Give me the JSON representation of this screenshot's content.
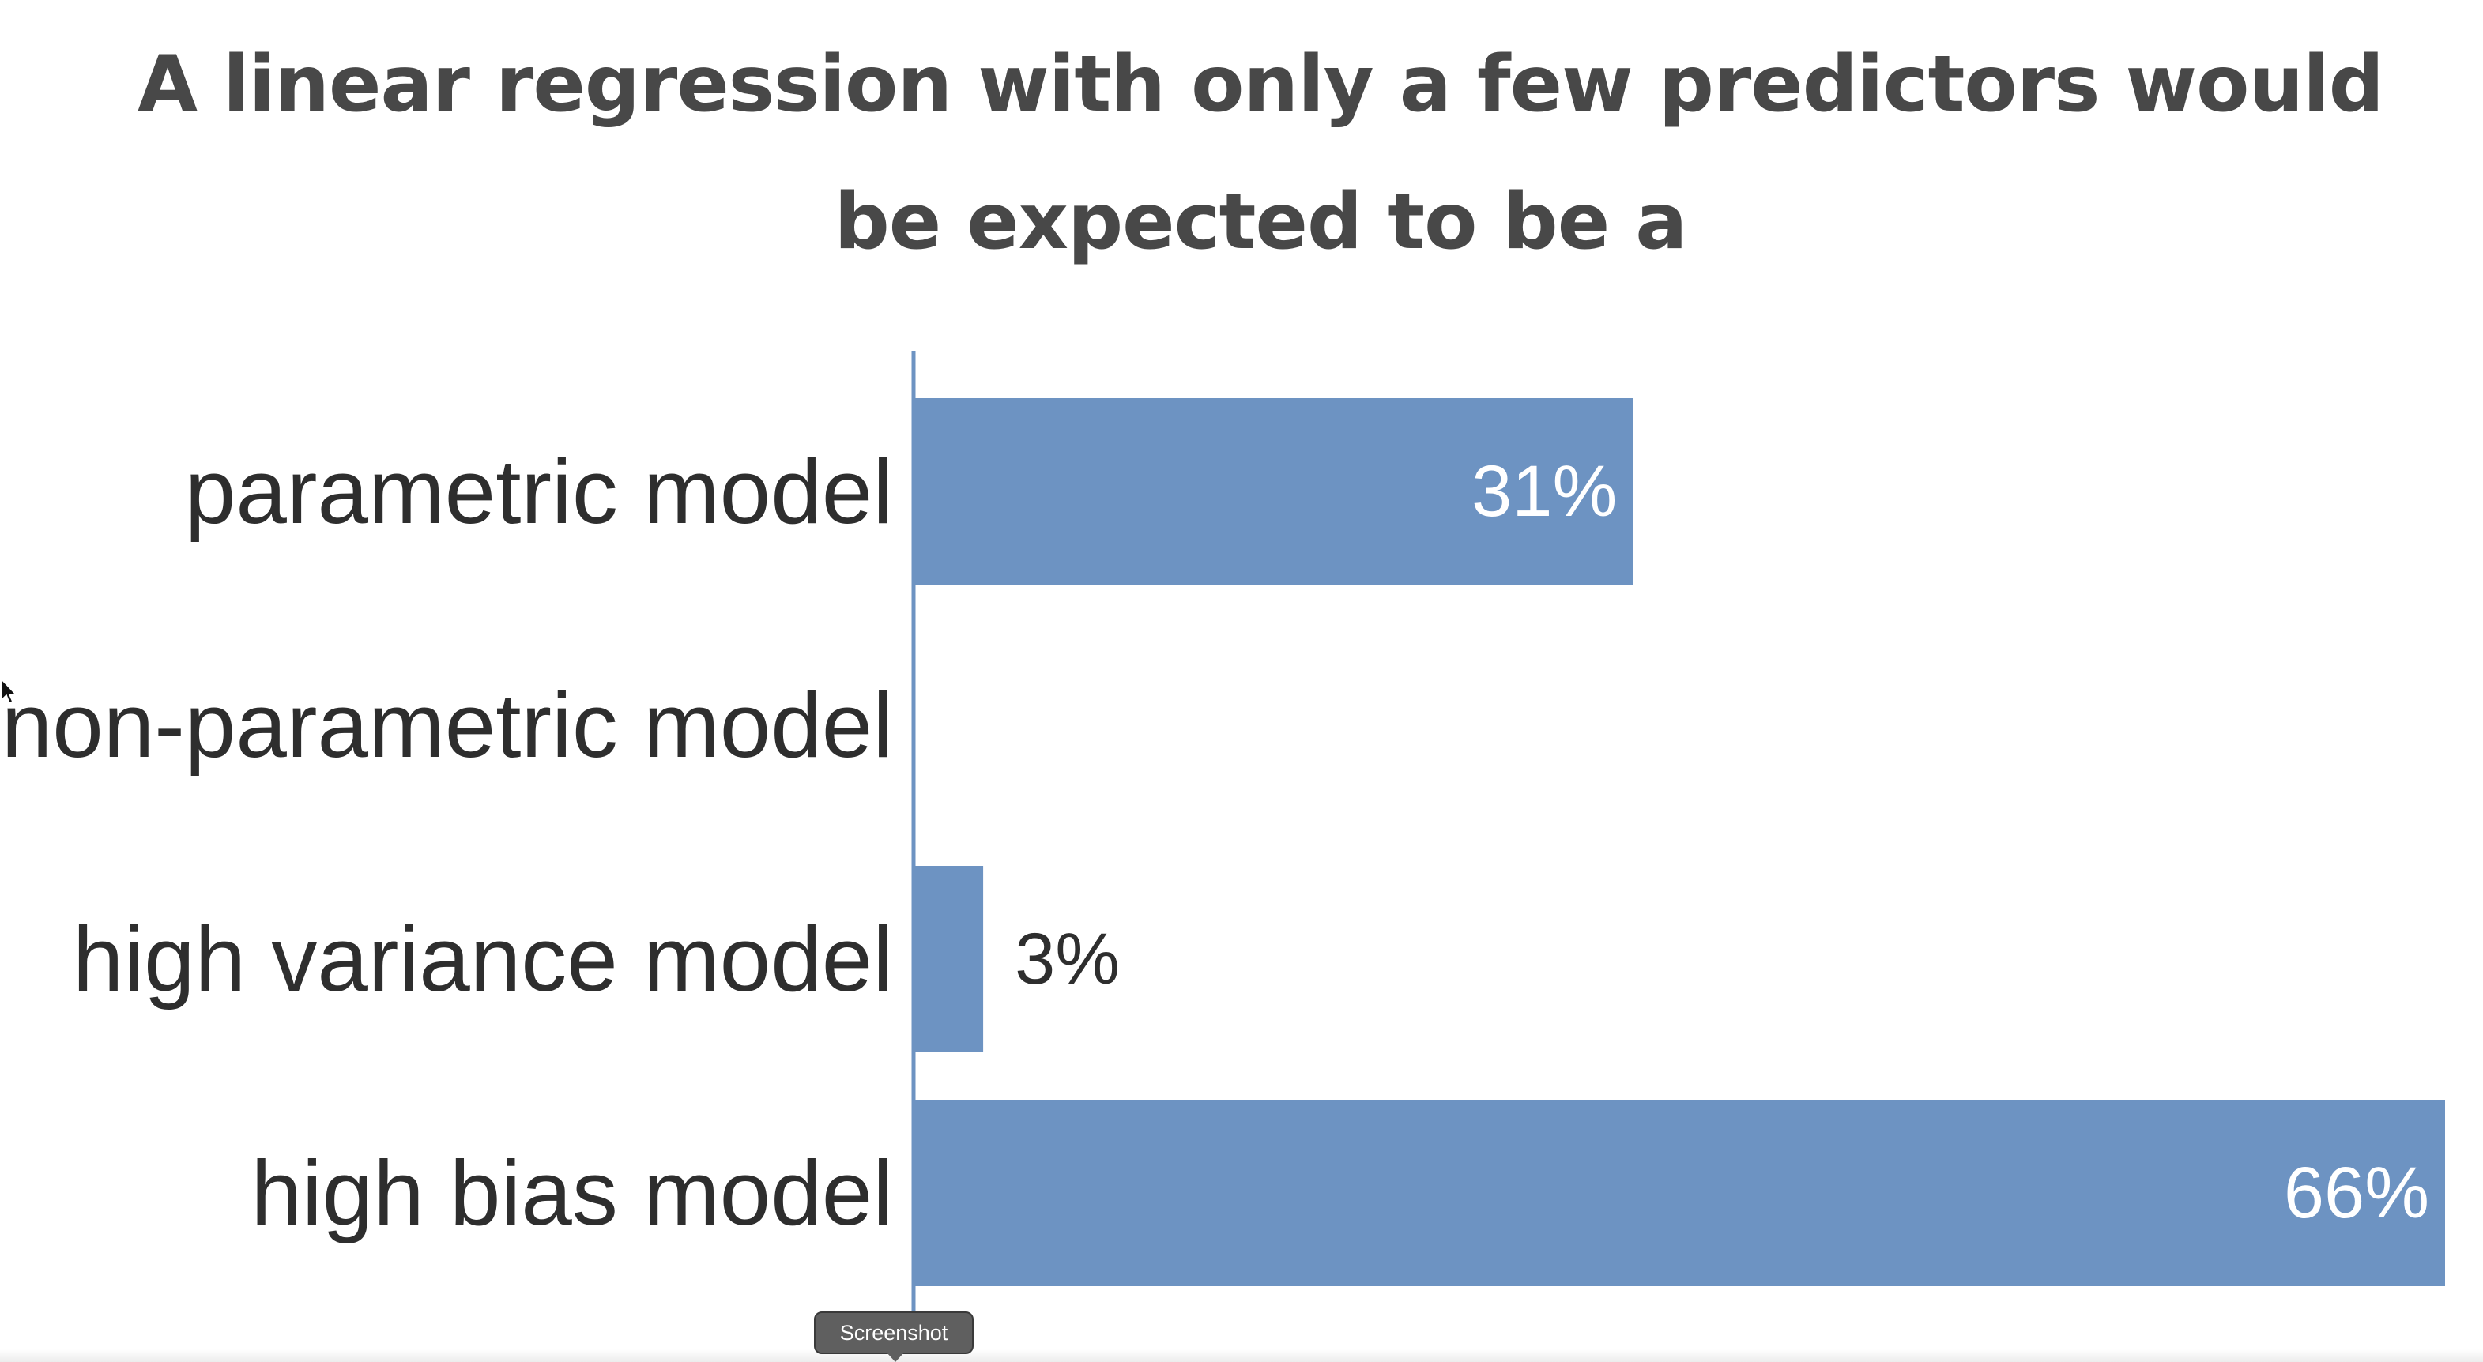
{
  "chart_data": {
    "type": "bar",
    "orientation": "horizontal",
    "title": "A linear regression with only a few predictors would be expected to be a",
    "categories": [
      "parametric model",
      "non-parametric model",
      "high variance model",
      "high bias model"
    ],
    "values": [
      31,
      0,
      3,
      66
    ],
    "value_labels": [
      "31%",
      "",
      "3%",
      "66%"
    ],
    "unit": "%",
    "xlim": [
      0,
      66
    ],
    "grid": false,
    "legend": "none",
    "bar_color": "#6d93c2",
    "axis_color": "#6d93c2"
  },
  "tooltip": {
    "label": "Screenshot"
  },
  "cursor": {
    "icon": "pointer-arrow-icon"
  }
}
